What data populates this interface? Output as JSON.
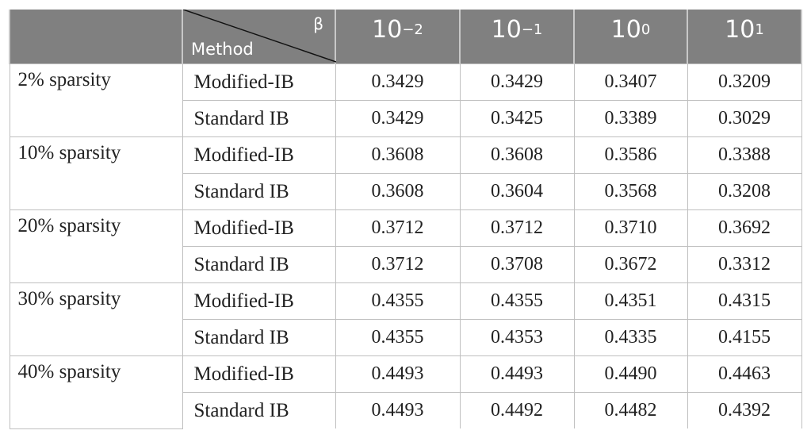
{
  "chart_data": {
    "type": "table",
    "header": {
      "corner_top": "β",
      "corner_bottom": "Method",
      "beta_columns": [
        {
          "base": "10",
          "exp": "−2"
        },
        {
          "base": "10",
          "exp": "−1"
        },
        {
          "base": "10",
          "exp": "0"
        },
        {
          "base": "10",
          "exp": "1"
        }
      ]
    },
    "groups": [
      {
        "label": "2% sparsity",
        "rows": [
          {
            "method": "Modified-IB",
            "values": [
              "0.3429",
              "0.3429",
              "0.3407",
              "0.3209"
            ]
          },
          {
            "method": "Standard IB",
            "values": [
              "0.3429",
              "0.3425",
              "0.3389",
              "0.3029"
            ]
          }
        ]
      },
      {
        "label": "10% sparsity",
        "rows": [
          {
            "method": "Modified-IB",
            "values": [
              "0.3608",
              "0.3608",
              "0.3586",
              "0.3388"
            ]
          },
          {
            "method": "Standard IB",
            "values": [
              "0.3608",
              "0.3604",
              "0.3568",
              "0.3208"
            ]
          }
        ]
      },
      {
        "label": "20% sparsity",
        "rows": [
          {
            "method": "Modified-IB",
            "values": [
              "0.3712",
              "0.3712",
              "0.3710",
              "0.3692"
            ]
          },
          {
            "method": "Standard IB",
            "values": [
              "0.3712",
              "0.3708",
              "0.3672",
              "0.3312"
            ]
          }
        ]
      },
      {
        "label": "30% sparsity",
        "rows": [
          {
            "method": "Modified-IB",
            "values": [
              "0.4355",
              "0.4355",
              "0.4351",
              "0.4315"
            ]
          },
          {
            "method": "Standard IB",
            "values": [
              "0.4355",
              "0.4353",
              "0.4335",
              "0.4155"
            ]
          }
        ]
      },
      {
        "label": "40% sparsity",
        "rows": [
          {
            "method": "Modified-IB",
            "values": [
              "0.4493",
              "0.4493",
              "0.4490",
              "0.4463"
            ]
          },
          {
            "method": "Standard IB",
            "values": [
              "0.4493",
              "0.4492",
              "0.4482",
              "0.4392"
            ]
          }
        ]
      }
    ]
  },
  "colors": {
    "header_bg": "#808080",
    "header_text": "#ffffff",
    "grid": "#bfbfbf",
    "text": "#222222"
  }
}
